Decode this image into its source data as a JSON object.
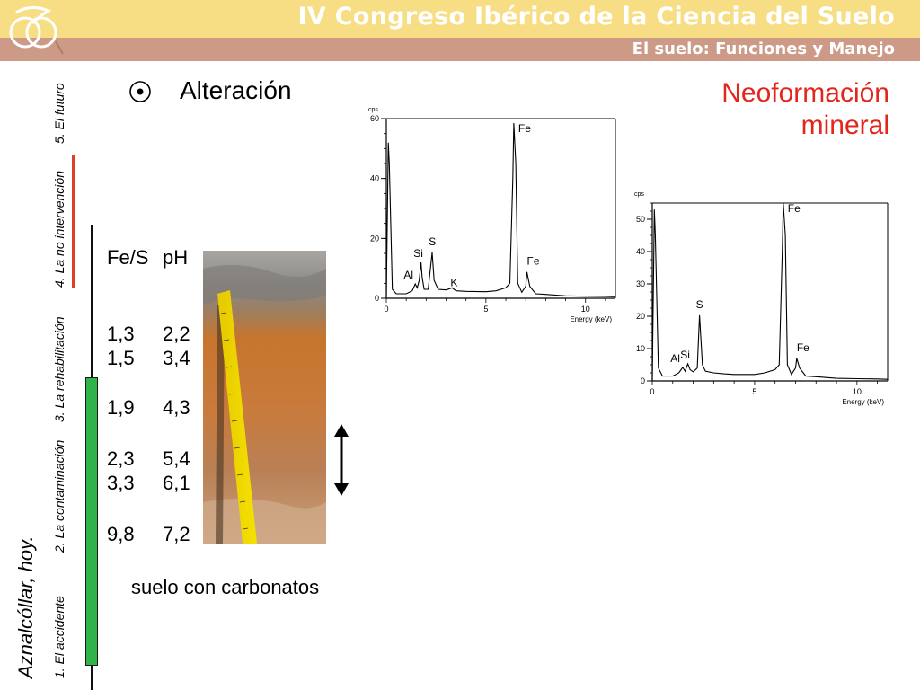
{
  "header": {
    "title": "IV Congreso Ibérico de la Ciencia del Suelo",
    "subtitle": "El suelo: Funciones y Manejo"
  },
  "sidebar": {
    "tagline": "Aznalcóllar, hoy.",
    "items": [
      {
        "label": "1. El accidente"
      },
      {
        "label": "2. La contaminación"
      },
      {
        "label": "3. La rehabilitación"
      },
      {
        "label": "4. La no intervención"
      },
      {
        "label": "5. El futuro"
      }
    ]
  },
  "content": {
    "bullet_icon": "circled-dot-icon",
    "section_title": "Alteración",
    "highlight_line1": "Neoformación",
    "highlight_line2": "mineral",
    "table": {
      "headers": [
        "Fe/S",
        "pH"
      ],
      "rows": [
        [
          "1,3",
          "2,2"
        ],
        [
          "1,5",
          "3,4"
        ],
        [
          "1,9",
          "4,3"
        ],
        [
          "2,3",
          "5,4"
        ],
        [
          "3,3",
          "6,1"
        ],
        [
          "9,8",
          "7,2"
        ]
      ]
    },
    "soil_caption": "suelo con carbonatos"
  },
  "colors": {
    "header_top": "#f7de84",
    "header_bottom": "#cc9a86",
    "highlight_red": "#e3261d",
    "sidebar_green": "#2fb34a",
    "sidebar_red": "#e0402a"
  },
  "chart_data": [
    {
      "type": "line",
      "title": "",
      "ylabel": "cps",
      "xlabel": "Energy (keV)",
      "xlim": [
        0,
        11.5
      ],
      "ylim": [
        0,
        60
      ],
      "xticks": [
        0,
        5,
        10
      ],
      "yticks": [
        0,
        20,
        40,
        60
      ],
      "series": [
        {
          "x": [
            0,
            0.1,
            0.15,
            0.3,
            0.5,
            1.0,
            1.3,
            1.45,
            1.55,
            1.65,
            1.74,
            1.8,
            1.9,
            2.1,
            2.3,
            2.4,
            2.6,
            3.0,
            3.3,
            3.5,
            4.0,
            5.0,
            5.5,
            6.0,
            6.2,
            6.35,
            6.4,
            6.5,
            6.6,
            6.8,
            7.0,
            7.06,
            7.2,
            7.5,
            8.0,
            9.0,
            10.0,
            11.0,
            11.5
          ],
          "y": [
            0,
            52,
            45,
            3,
            1.5,
            1.5,
            2.5,
            4.8,
            3.5,
            6,
            12,
            7,
            3,
            3,
            15.3,
            6,
            3,
            2.8,
            3.5,
            2.5,
            2.3,
            2.2,
            2.5,
            3.5,
            5,
            40,
            58.5,
            45,
            5,
            2,
            4,
            8.8,
            4,
            1.5,
            1.3,
            0.8,
            0.7,
            0.6,
            0.5
          ]
        }
      ],
      "annotations": [
        {
          "text": "Fe",
          "x": 6.4,
          "y": 58.5
        },
        {
          "text": "Fe",
          "x": 7.06,
          "y": 8.8
        },
        {
          "text": "Si",
          "x": 1.74,
          "y": 12
        },
        {
          "text": "Al",
          "x": 1.49,
          "y": 4.8
        },
        {
          "text": "S",
          "x": 2.31,
          "y": 15.3
        },
        {
          "text": "K",
          "x": 3.31,
          "y": 3.5
        }
      ]
    },
    {
      "type": "line",
      "title": "",
      "ylabel": "cps",
      "xlabel": "Energy (keV)",
      "xlim": [
        0,
        11.5
      ],
      "ylim": [
        0,
        55
      ],
      "xticks": [
        0,
        5,
        10
      ],
      "yticks": [
        0,
        10,
        20,
        30,
        40,
        50
      ],
      "series": [
        {
          "x": [
            0,
            0.1,
            0.15,
            0.3,
            0.5,
            1.0,
            1.3,
            1.49,
            1.6,
            1.74,
            1.85,
            2.0,
            2.2,
            2.31,
            2.45,
            2.6,
            3.0,
            3.5,
            4.0,
            5.0,
            5.5,
            6.0,
            6.2,
            6.35,
            6.4,
            6.5,
            6.6,
            6.8,
            7.0,
            7.06,
            7.2,
            7.5,
            8.0,
            9.0,
            10.0,
            11.0,
            11.5
          ],
          "y": [
            0,
            53,
            45,
            4,
            1.5,
            1.5,
            2.5,
            4.2,
            3,
            5.3,
            3.5,
            2.8,
            4,
            20.3,
            5,
            3,
            2.5,
            2.2,
            2,
            2,
            2.5,
            3.5,
            5,
            40,
            55,
            45,
            5,
            2,
            4,
            7,
            4,
            1.5,
            1.3,
            0.8,
            0.7,
            0.6,
            0.5
          ]
        }
      ],
      "annotations": [
        {
          "text": "Fe",
          "x": 6.4,
          "y": 55
        },
        {
          "text": "Fe",
          "x": 7.06,
          "y": 7
        },
        {
          "text": "S",
          "x": 2.31,
          "y": 20.3
        },
        {
          "text": "Si",
          "x": 1.74,
          "y": 5.3
        },
        {
          "text": "Al",
          "x": 1.49,
          "y": 4.2
        }
      ]
    }
  ]
}
